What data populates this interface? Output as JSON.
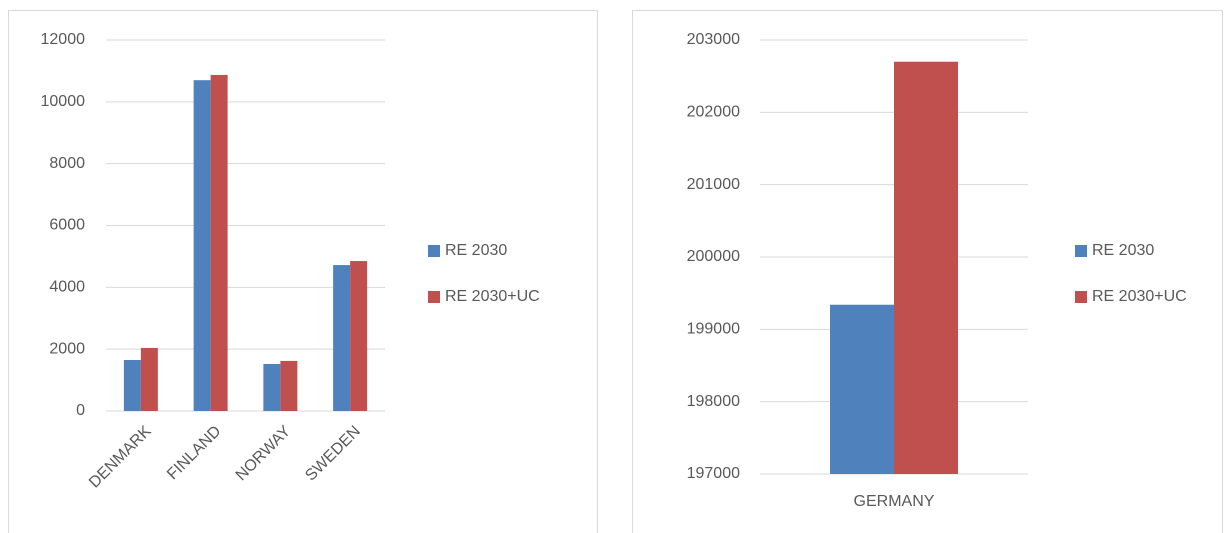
{
  "chart_data": [
    {
      "type": "bar",
      "categories": [
        "DENMARK",
        "FINLAND",
        "NORWAY",
        "SWEDEN"
      ],
      "series": [
        {
          "name": "RE 2030",
          "color": "#4f81bd",
          "values": [
            1650,
            10700,
            1520,
            4720
          ]
        },
        {
          "name": "RE 2030+UC",
          "color": "#c0504d",
          "values": [
            2040,
            10870,
            1620,
            4850
          ]
        }
      ],
      "ylim": [
        0,
        12000
      ],
      "yticks": [
        0,
        2000,
        4000,
        6000,
        8000,
        10000,
        12000
      ],
      "grid": true,
      "legend": "right",
      "rotate_labels": true
    },
    {
      "type": "bar",
      "categories": [
        "GERMANY"
      ],
      "series": [
        {
          "name": "RE 2030",
          "color": "#4f81bd",
          "values": [
            199340
          ]
        },
        {
          "name": "RE 2030+UC",
          "color": "#c0504d",
          "values": [
            202700
          ]
        }
      ],
      "ylim": [
        197000,
        203000
      ],
      "yticks": [
        197000,
        198000,
        199000,
        200000,
        201000,
        202000,
        203000
      ],
      "grid": true,
      "legend": "right",
      "rotate_labels": false
    }
  ]
}
